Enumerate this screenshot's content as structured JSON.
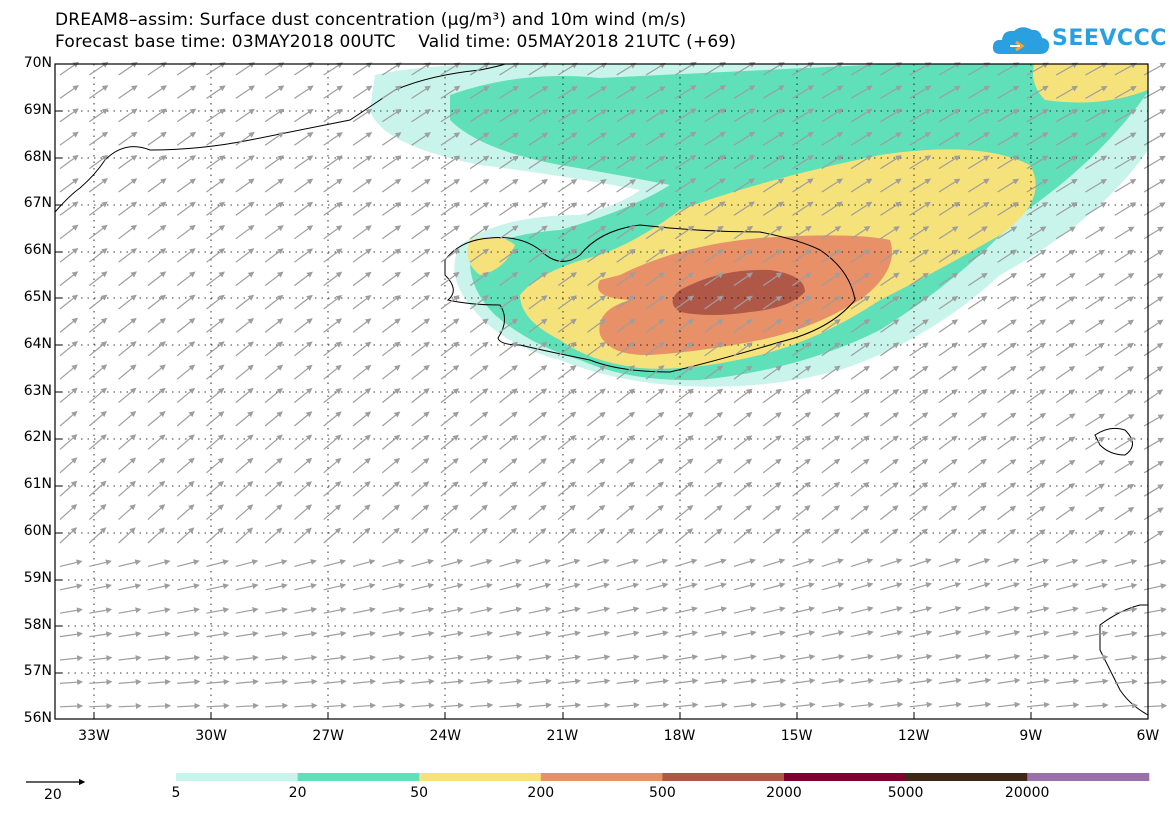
{
  "title_line1": "DREAM8–assim: Surface dust concentration (µg/m³) and 10m wind (m/s)",
  "title_line2": "Forecast base time: 03MAY2018 00UTC    Valid time: 05MAY2018 21UTC (+69)",
  "logo_text": "SEEVCCC",
  "logo_icon": "cloud-icon",
  "map": {
    "lat_labels": [
      "70N",
      "69N",
      "68N",
      "67N",
      "66N",
      "65N",
      "64N",
      "63N",
      "62N",
      "61N",
      "60N",
      "59N",
      "58N",
      "57N",
      "56N"
    ],
    "lon_labels": [
      "33W",
      "30W",
      "27W",
      "24W",
      "21W",
      "18W",
      "15W",
      "12W",
      "9W",
      "6W"
    ],
    "lat_range": [
      56,
      70
    ],
    "lon_range": [
      -34,
      -6
    ],
    "grid": "dotted"
  },
  "legend": {
    "arrow_label": "20",
    "labels": [
      "5",
      "20",
      "50",
      "200",
      "500",
      "2000",
      "5000",
      "20000"
    ],
    "colors": [
      "#c8f4ec",
      "#5fe0b8",
      "#f6e27a",
      "#e89068",
      "#b05848",
      "#800030",
      "#402818",
      "#9a70a8"
    ]
  }
}
